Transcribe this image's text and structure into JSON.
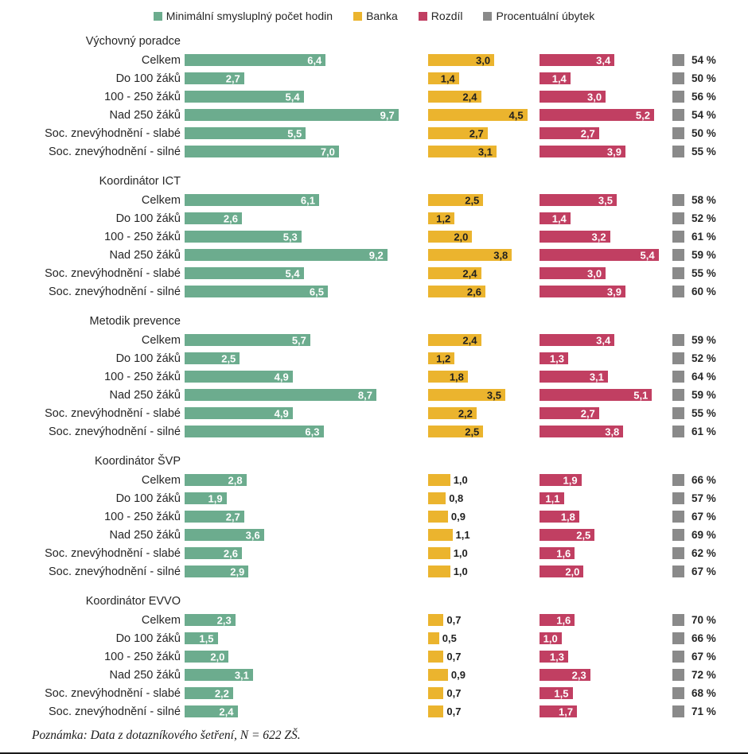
{
  "colors": {
    "min_hours": "#6CAC8E",
    "banka": "#EBB42E",
    "rozdil": "#C13F62",
    "ubytek": "#8A8A8A",
    "label_on_dark": "#ffffff",
    "label_on_yellow": "#1f1f1f"
  },
  "legend": [
    {
      "key": "min_hours",
      "label": "Minimální smysluplný počet hodin"
    },
    {
      "key": "banka",
      "label": "Banka"
    },
    {
      "key": "rozdil",
      "label": "Rozdíl"
    },
    {
      "key": "ubytek",
      "label": "Procentuální úbytek"
    }
  ],
  "note": "Poznámka: Data z dotazníkového šetření, N = 622 ZŠ.",
  "chart_data": {
    "type": "bar",
    "orientation": "horizontal",
    "value_axis_range": [
      0,
      10
    ],
    "decimal_separator": ",",
    "legend_position": "top",
    "grid": false,
    "series_names": [
      "Minimální smysluplný počet hodin",
      "Banka",
      "Rozdíl",
      "Procentuální úbytek"
    ],
    "categories": [
      "Celkem",
      "Do 100 žáků",
      "100 - 250 žáků",
      "Nad 250 žáků",
      "Soc. znevýhodnění - slabé",
      "Soc. znevýhodnění - silné"
    ],
    "groups": [
      {
        "name": "Výchovný poradce",
        "min_hours": [
          6.4,
          2.7,
          5.4,
          9.7,
          5.5,
          7.0
        ],
        "banka": [
          3.0,
          1.4,
          2.4,
          4.5,
          2.7,
          3.1
        ],
        "rozdil": [
          3.4,
          1.4,
          3.0,
          5.2,
          2.7,
          3.9
        ],
        "ubytek_pct": [
          54,
          50,
          56,
          54,
          50,
          55
        ]
      },
      {
        "name": "Koordinátor ICT",
        "min_hours": [
          6.1,
          2.6,
          5.3,
          9.2,
          5.4,
          6.5
        ],
        "banka": [
          2.5,
          1.2,
          2.0,
          3.8,
          2.4,
          2.6
        ],
        "rozdil": [
          3.5,
          1.4,
          3.2,
          5.4,
          3.0,
          3.9
        ],
        "ubytek_pct": [
          58,
          52,
          61,
          59,
          55,
          60
        ]
      },
      {
        "name": "Metodik prevence",
        "min_hours": [
          5.7,
          2.5,
          4.9,
          8.7,
          4.9,
          6.3
        ],
        "banka": [
          2.4,
          1.2,
          1.8,
          3.5,
          2.2,
          2.5
        ],
        "rozdil": [
          3.4,
          1.3,
          3.1,
          5.1,
          2.7,
          3.8
        ],
        "ubytek_pct": [
          59,
          52,
          64,
          59,
          55,
          61
        ]
      },
      {
        "name": "Koordinátor ŠVP",
        "min_hours": [
          2.8,
          1.9,
          2.7,
          3.6,
          2.6,
          2.9
        ],
        "banka": [
          1.0,
          0.8,
          0.9,
          1.1,
          1.0,
          1.0
        ],
        "rozdil": [
          1.9,
          1.1,
          1.8,
          2.5,
          1.6,
          2.0
        ],
        "ubytek_pct": [
          66,
          57,
          67,
          69,
          62,
          67
        ]
      },
      {
        "name": "Koordinátor EVVO",
        "min_hours": [
          2.3,
          1.5,
          2.0,
          3.1,
          2.2,
          2.4
        ],
        "banka": [
          0.7,
          0.5,
          0.7,
          0.9,
          0.7,
          0.7
        ],
        "rozdil": [
          1.6,
          1.0,
          1.3,
          2.3,
          1.5,
          1.7
        ],
        "ubytek_pct": [
          70,
          66,
          67,
          72,
          68,
          71
        ]
      }
    ]
  }
}
